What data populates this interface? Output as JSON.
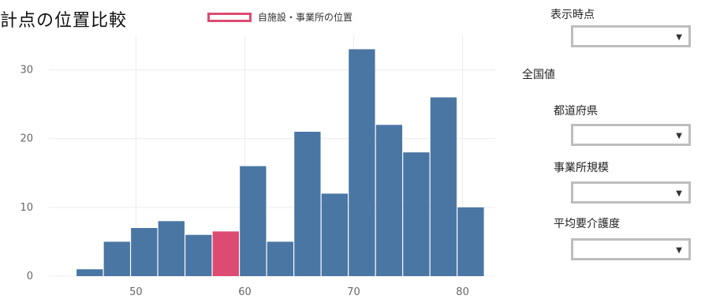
{
  "chart": {
    "title": "計点の位置比較",
    "legend_label": "自施設・事業所の位置",
    "highlight_color": "#dc4c72",
    "bar_color": "#4a76a4"
  },
  "chart_data": {
    "type": "bar",
    "title": "計点の位置比較",
    "xlabel": "",
    "ylabel": "",
    "xlim": [
      42,
      83
    ],
    "ylim": [
      0,
      35
    ],
    "x_ticks": [
      50,
      60,
      70,
      80
    ],
    "y_ticks": [
      0,
      10,
      20,
      30
    ],
    "bin_width": 2.5,
    "bins": [
      {
        "x0": 44.5,
        "value": 1,
        "highlight": false
      },
      {
        "x0": 47.0,
        "value": 5,
        "highlight": false
      },
      {
        "x0": 49.5,
        "value": 7,
        "highlight": false
      },
      {
        "x0": 52.0,
        "value": 8,
        "highlight": false
      },
      {
        "x0": 54.5,
        "value": 6,
        "highlight": false
      },
      {
        "x0": 57.0,
        "value": 6.5,
        "highlight": true
      },
      {
        "x0": 59.5,
        "value": 16,
        "highlight": false
      },
      {
        "x0": 62.0,
        "value": 5,
        "highlight": false
      },
      {
        "x0": 64.5,
        "value": 21,
        "highlight": false
      },
      {
        "x0": 67.0,
        "value": 12,
        "highlight": false
      },
      {
        "x0": 69.5,
        "value": 33,
        "highlight": false
      },
      {
        "x0": 72.0,
        "value": 22,
        "highlight": false
      },
      {
        "x0": 74.5,
        "value": 18,
        "highlight": false
      },
      {
        "x0": 77.0,
        "value": 26,
        "highlight": false
      },
      {
        "x0": 79.5,
        "value": 10,
        "highlight": false
      }
    ],
    "series": [
      {
        "values": [
          1,
          5,
          7,
          8,
          6,
          6.5,
          16,
          5,
          21,
          12,
          33,
          22,
          18,
          26,
          10
        ]
      }
    ],
    "grid": true
  },
  "controls": {
    "display_time_label": "表示時点",
    "national_label": "全国値",
    "prefecture_label": "都道府県",
    "scale_label": "事業所規模",
    "care_level_label": "平均要介護度",
    "caret": "▼"
  }
}
